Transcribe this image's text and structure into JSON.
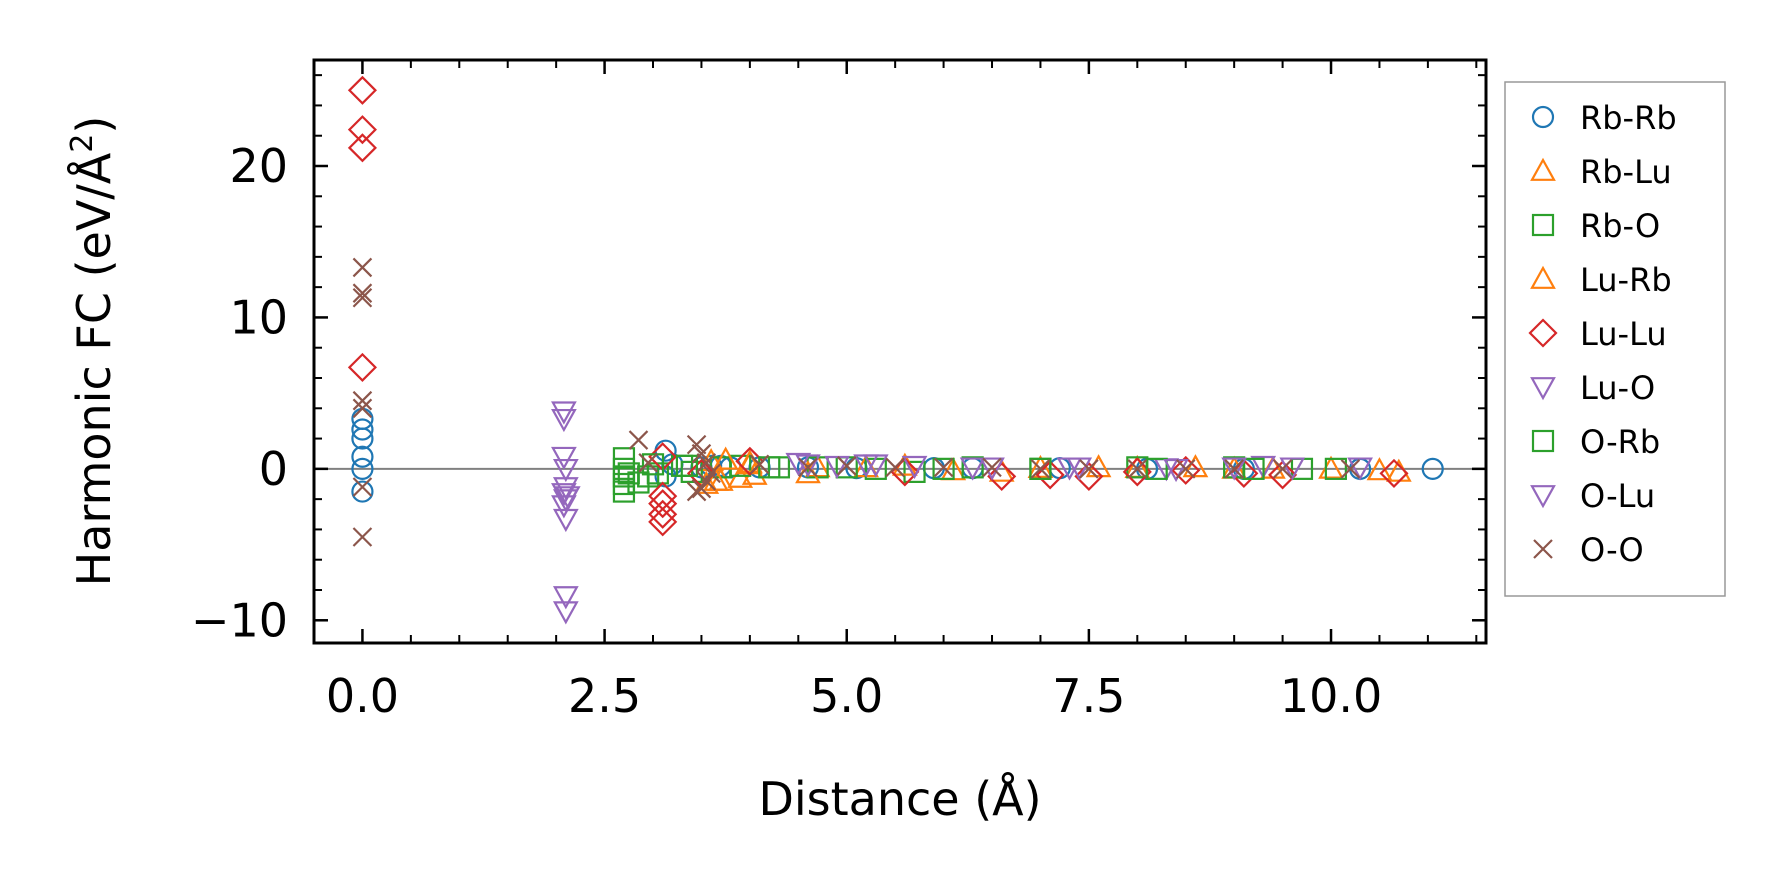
{
  "chart_data": {
    "type": "scatter",
    "xlabel": "Distance (Å)",
    "ylabel_main": "Harmonic FC (eV/Å",
    "ylabel_sup": "2",
    "ylabel_close": ")",
    "xlim": [
      -0.5,
      11.6
    ],
    "ylim": [
      -11.5,
      27
    ],
    "xticks": [
      0.0,
      2.5,
      5.0,
      7.5,
      10.0
    ],
    "xtick_labels": [
      "0.0",
      "2.5",
      "5.0",
      "7.5",
      "10.0"
    ],
    "yticks": [
      -10,
      0,
      10,
      20
    ],
    "ytick_labels": [
      "−10",
      "0",
      "10",
      "20"
    ],
    "zero_line": true,
    "legend_position": "right",
    "series": [
      {
        "name": "Rb-Rb",
        "marker": "circle",
        "color": "#1f77b4",
        "x": [
          0,
          0,
          0,
          0,
          0,
          0,
          3.13,
          3.13,
          3.2,
          3.5,
          3.6,
          3.7,
          3.8,
          4.1,
          4.6,
          5.1,
          5.9,
          6.3,
          7.2,
          8.1,
          9.1,
          10.3,
          11.05
        ],
        "y": [
          -1.5,
          0,
          0.8,
          2,
          2.6,
          3.3,
          1.2,
          -0.5,
          0.3,
          0.1,
          0.2,
          0.2,
          0.1,
          0.1,
          0.1,
          0.05,
          0.05,
          0.05,
          0.05,
          0,
          0,
          0,
          0
        ]
      },
      {
        "name": "Rb-Lu",
        "marker": "triangle-up",
        "color": "#ff7f0e",
        "x": [
          3.55,
          3.6,
          3.7,
          3.9,
          4.0,
          4.05,
          4.7,
          5.2,
          6.1,
          7.0,
          8.0,
          9.0,
          10.0,
          10.7
        ],
        "y": [
          -1.0,
          0.5,
          -0.8,
          -0.6,
          0.3,
          -0.4,
          0.1,
          0.1,
          -0.1,
          0.05,
          0.05,
          0,
          0,
          -0.2
        ]
      },
      {
        "name": "Rb-O",
        "marker": "square",
        "color": "#2ca02c",
        "x": [
          2.7,
          2.7,
          2.7,
          2.7,
          2.7,
          2.85,
          2.95,
          3.05,
          3.3,
          3.4,
          3.7,
          3.9,
          4.3,
          4.7,
          5.3,
          5.7,
          6.3,
          7.0,
          8.0,
          9.0,
          9.7,
          10.05
        ],
        "y": [
          0.7,
          0,
          -0.5,
          -1.0,
          -1.5,
          -0.9,
          -0.5,
          -0.3,
          0.2,
          -0.2,
          0.1,
          0.2,
          0.1,
          0.1,
          0,
          -0.2,
          0.1,
          0,
          0.1,
          0.1,
          0,
          0
        ]
      },
      {
        "name": "Lu-Rb",
        "marker": "triangle-up",
        "color": "#ff7f0e",
        "x": [
          3.65,
          3.75,
          4.0,
          4.6,
          5.6,
          6.6,
          7.6,
          8.6,
          9.4,
          10.5
        ],
        "y": [
          -0.8,
          0.6,
          0.4,
          -0.3,
          0.2,
          -0.2,
          0.1,
          0.1,
          0,
          -0.1
        ]
      },
      {
        "name": "Lu-Lu",
        "marker": "diamond",
        "color": "#d62728",
        "x": [
          0,
          0,
          0,
          0,
          3.1,
          3.1,
          3.1,
          3.1,
          3.1,
          3.5,
          4.0,
          5.6,
          6.6,
          7.1,
          7.5,
          8.0,
          8.5,
          9.1,
          9.5,
          10.65
        ],
        "y": [
          25,
          22.4,
          21.2,
          6.7,
          -1.8,
          -2.3,
          -3.0,
          -3.5,
          0.8,
          -0.3,
          0.5,
          -0.2,
          -0.5,
          -0.4,
          -0.5,
          -0.2,
          -0.1,
          -0.3,
          -0.4,
          -0.3
        ]
      },
      {
        "name": "Lu-O",
        "marker": "triangle-down",
        "color": "#9467bd",
        "x": [
          2.08,
          2.08,
          2.08,
          2.08,
          2.08,
          2.1,
          2.1,
          2.1,
          2.1,
          2.1,
          2.1,
          4.6,
          5.3,
          6.3,
          7.3,
          8.3,
          9.3,
          10.3
        ],
        "y": [
          3.8,
          3.3,
          0.8,
          -1.6,
          -2.4,
          -3.3,
          -1.2,
          0.0,
          -8.4,
          -9.4,
          -2.0,
          0.3,
          0.3,
          0.1,
          0.1,
          0.05,
          0.2,
          0.1
        ]
      },
      {
        "name": "O-Rb",
        "marker": "square",
        "color": "#2ca02c",
        "x": [
          2.75,
          3.0,
          3.35,
          4.2,
          5.0,
          6.0,
          7.0,
          8.2,
          9.2
        ],
        "y": [
          -0.3,
          0.3,
          0.2,
          0.1,
          0.1,
          0,
          0,
          0,
          0
        ]
      },
      {
        "name": "O-Lu",
        "marker": "triangle-down",
        "color": "#9467bd",
        "x": [
          2.12,
          4.5,
          4.9,
          5.2,
          5.7,
          6.5,
          7.4,
          8.4,
          9.0,
          9.6
        ],
        "y": [
          -1.8,
          0.4,
          0.2,
          0.3,
          0.2,
          0.1,
          0.1,
          0,
          0.1,
          0.1
        ]
      },
      {
        "name": "O-O",
        "marker": "x",
        "color": "#8c564b",
        "x": [
          0,
          0,
          0,
          0,
          0,
          0,
          0,
          2.85,
          2.95,
          3.45,
          3.5,
          3.55,
          3.6,
          3.55,
          3.5,
          3.45,
          4.1,
          4.6,
          5.0,
          5.5,
          6.0,
          6.5,
          7.0,
          7.5,
          8.0,
          8.5,
          9.0,
          9.5,
          10.2
        ],
        "y": [
          13.3,
          11.6,
          11.3,
          4.5,
          4.0,
          -4.5,
          -1.2,
          1.9,
          0.4,
          1.6,
          1.0,
          0.4,
          -0.3,
          -0.8,
          -1.3,
          -1.5,
          0.3,
          0.1,
          0.2,
          0.1,
          0.1,
          0.1,
          0,
          0,
          0,
          0,
          0,
          0,
          0
        ]
      }
    ]
  }
}
